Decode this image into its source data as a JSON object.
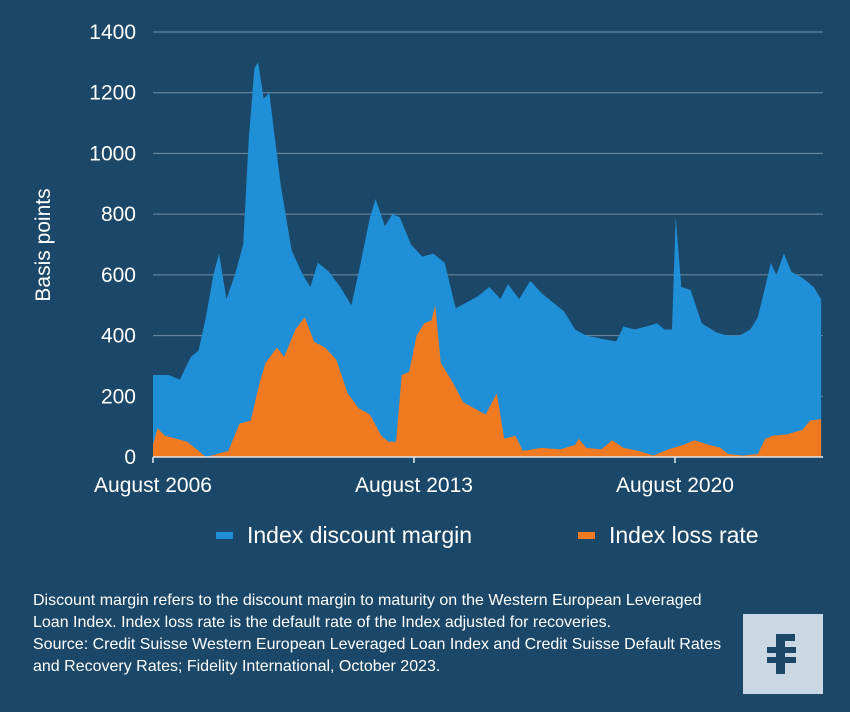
{
  "colors": {
    "background": "#1b4868",
    "grid": "#6f8fa8",
    "margin_series": "#1f8fd8",
    "loss_series": "#f07a22",
    "logo_bg": "#c9d8e3",
    "logo_mark": "#1b4868"
  },
  "chart_data": {
    "type": "area",
    "ylabel": "Basis points",
    "xlabel": "",
    "ylim": [
      0,
      1400
    ],
    "yticks": [
      0,
      200,
      400,
      600,
      800,
      1000,
      1200,
      1400
    ],
    "xticks": [
      {
        "x": 2006.58,
        "label": "August 2006"
      },
      {
        "x": 2013.58,
        "label": "August 2013"
      },
      {
        "x": 2020.58,
        "label": "August 2020"
      }
    ],
    "grid": true,
    "legend_position": "bottom",
    "series": [
      {
        "name": "Index discount margin",
        "color": "#1f8fd8",
        "points": [
          [
            2006.58,
            270
          ],
          [
            2007.0,
            270
          ],
          [
            2007.3,
            255
          ],
          [
            2007.6,
            330
          ],
          [
            2007.8,
            350
          ],
          [
            2008.0,
            460
          ],
          [
            2008.2,
            600
          ],
          [
            2008.35,
            670
          ],
          [
            2008.55,
            520
          ],
          [
            2008.8,
            610
          ],
          [
            2009.0,
            700
          ],
          [
            2009.15,
            1050
          ],
          [
            2009.3,
            1280
          ],
          [
            2009.4,
            1300
          ],
          [
            2009.55,
            1180
          ],
          [
            2009.7,
            1200
          ],
          [
            2010.0,
            900
          ],
          [
            2010.3,
            680
          ],
          [
            2010.6,
            600
          ],
          [
            2010.8,
            560
          ],
          [
            2011.0,
            640
          ],
          [
            2011.3,
            610
          ],
          [
            2011.6,
            560
          ],
          [
            2011.9,
            500
          ],
          [
            2012.1,
            610
          ],
          [
            2012.4,
            790
          ],
          [
            2012.55,
            850
          ],
          [
            2012.8,
            760
          ],
          [
            2013.0,
            800
          ],
          [
            2013.2,
            790
          ],
          [
            2013.5,
            700
          ],
          [
            2013.8,
            660
          ],
          [
            2014.1,
            670
          ],
          [
            2014.4,
            640
          ],
          [
            2014.7,
            490
          ],
          [
            2015.0,
            510
          ],
          [
            2015.3,
            530
          ],
          [
            2015.6,
            560
          ],
          [
            2015.9,
            520
          ],
          [
            2016.1,
            570
          ],
          [
            2016.4,
            520
          ],
          [
            2016.7,
            580
          ],
          [
            2017.0,
            540
          ],
          [
            2017.3,
            510
          ],
          [
            2017.6,
            480
          ],
          [
            2017.9,
            420
          ],
          [
            2018.2,
            400
          ],
          [
            2018.6,
            390
          ],
          [
            2019.0,
            380
          ],
          [
            2019.2,
            430
          ],
          [
            2019.5,
            420
          ],
          [
            2019.8,
            430
          ],
          [
            2020.1,
            440
          ],
          [
            2020.3,
            420
          ],
          [
            2020.5,
            420
          ],
          [
            2020.6,
            790
          ],
          [
            2020.75,
            560
          ],
          [
            2021.0,
            550
          ],
          [
            2021.3,
            440
          ],
          [
            2021.7,
            410
          ],
          [
            2022.0,
            400
          ],
          [
            2022.3,
            400
          ],
          [
            2022.6,
            420
          ],
          [
            2022.8,
            460
          ],
          [
            2023.0,
            560
          ],
          [
            2023.15,
            640
          ],
          [
            2023.3,
            600
          ],
          [
            2023.5,
            670
          ],
          [
            2023.7,
            610
          ],
          [
            2024.0,
            590
          ],
          [
            2024.3,
            560
          ],
          [
            2024.5,
            520
          ]
        ]
      },
      {
        "name": "Index loss rate",
        "color": "#f07a22",
        "points": [
          [
            2006.58,
            40
          ],
          [
            2006.7,
            95
          ],
          [
            2006.9,
            70
          ],
          [
            2007.2,
            60
          ],
          [
            2007.5,
            50
          ],
          [
            2007.8,
            20
          ],
          [
            2008.0,
            0
          ],
          [
            2008.3,
            10
          ],
          [
            2008.6,
            20
          ],
          [
            2008.9,
            110
          ],
          [
            2009.2,
            120
          ],
          [
            2009.45,
            250
          ],
          [
            2009.6,
            310
          ],
          [
            2009.9,
            360
          ],
          [
            2010.1,
            330
          ],
          [
            2010.4,
            420
          ],
          [
            2010.65,
            460
          ],
          [
            2010.9,
            380
          ],
          [
            2011.2,
            360
          ],
          [
            2011.5,
            320
          ],
          [
            2011.8,
            210
          ],
          [
            2012.1,
            160
          ],
          [
            2012.4,
            140
          ],
          [
            2012.7,
            70
          ],
          [
            2012.9,
            50
          ],
          [
            2013.1,
            50
          ],
          [
            2013.25,
            270
          ],
          [
            2013.45,
            280
          ],
          [
            2013.65,
            400
          ],
          [
            2013.85,
            440
          ],
          [
            2014.05,
            450
          ],
          [
            2014.15,
            500
          ],
          [
            2014.3,
            310
          ],
          [
            2014.6,
            250
          ],
          [
            2014.9,
            180
          ],
          [
            2015.2,
            160
          ],
          [
            2015.5,
            140
          ],
          [
            2015.8,
            210
          ],
          [
            2016.0,
            60
          ],
          [
            2016.3,
            70
          ],
          [
            2016.5,
            20
          ],
          [
            2017.0,
            30
          ],
          [
            2017.5,
            25
          ],
          [
            2017.9,
            40
          ],
          [
            2018.0,
            60
          ],
          [
            2018.2,
            30
          ],
          [
            2018.6,
            25
          ],
          [
            2018.9,
            55
          ],
          [
            2019.2,
            30
          ],
          [
            2019.6,
            20
          ],
          [
            2020.0,
            5
          ],
          [
            2020.4,
            25
          ],
          [
            2020.8,
            40
          ],
          [
            2021.1,
            55
          ],
          [
            2021.5,
            40
          ],
          [
            2021.8,
            30
          ],
          [
            2022.0,
            10
          ],
          [
            2022.4,
            5
          ],
          [
            2022.8,
            10
          ],
          [
            2023.0,
            60
          ],
          [
            2023.2,
            70
          ],
          [
            2023.6,
            75
          ],
          [
            2024.0,
            90
          ],
          [
            2024.2,
            120
          ],
          [
            2024.5,
            125
          ]
        ]
      }
    ]
  },
  "legend": {
    "margin_label": "Index discount margin",
    "loss_label": "Index loss rate"
  },
  "footnote": {
    "note": "Discount margin refers to the discount margin to maturity on the Western European Leveraged Loan Index. Index loss rate is the default rate of the Index adjusted for recoveries.",
    "source": "Source: Credit Suisse Western European Leveraged Loan Index and Credit Suisse Default Rates and Recovery Rates; Fidelity International, October 2023."
  },
  "logo": {
    "icon": "fidelity-f-logo"
  }
}
